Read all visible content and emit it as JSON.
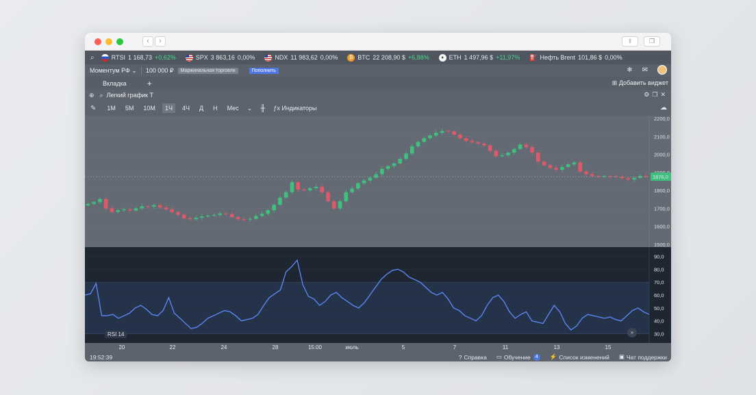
{
  "tickers": [
    {
      "icon": "flag-ru",
      "name": "RTSI",
      "value": "1 168,73",
      "change": "+0,62%",
      "dir": "pos"
    },
    {
      "icon": "flag-us",
      "name": "SPX",
      "value": "3 863,16",
      "change": "0,00%",
      "dir": "zero"
    },
    {
      "icon": "flag-us",
      "name": "NDX",
      "value": "11 983,62",
      "change": "0,00%",
      "dir": "zero"
    },
    {
      "icon": "coin-btc",
      "name": "BTC",
      "value": "22 208,90 $",
      "change": "+6,88%",
      "dir": "pos"
    },
    {
      "icon": "coin-eth",
      "name": "ETH",
      "value": "1 497,96 $",
      "change": "+11,97%",
      "dir": "pos"
    },
    {
      "icon": "oil-icon",
      "name": "Нефть Brent",
      "value": "101,86 $",
      "change": "0,00%",
      "dir": "zero"
    }
  ],
  "account": {
    "name": "Моментум РФ",
    "balance": "100 000 ₽",
    "margin_badge": "Маржинальная торговля",
    "deposit_button": "Пополнить"
  },
  "tabs": {
    "tab1": "Вкладка",
    "add": "+",
    "add_widget": "Добавить виджет"
  },
  "widget": {
    "title": "Легкий график T"
  },
  "toolbar": {
    "timeframes": [
      "1М",
      "5М",
      "10М",
      "1Ч",
      "4Ч",
      "Д",
      "Н",
      "Мес"
    ],
    "active_timeframe": "1Ч",
    "indicators": "Индикаторы"
  },
  "price_axis": [
    "2200,0",
    "2100,0",
    "2000,0",
    "1900,0",
    "1800,0",
    "1700,0",
    "1600,0",
    "1500,0"
  ],
  "last_price": "1876,0",
  "rsi_axis": [
    "90,0",
    "80,0",
    "70,0",
    "60,0",
    "50,0",
    "40,0",
    "30,0"
  ],
  "rsi_label": "RSI 14",
  "time_labels": [
    "20",
    "22",
    "24",
    "28",
    "15:00",
    "июль",
    "5",
    "7",
    "11",
    "13",
    "15"
  ],
  "status": {
    "clock": "19:52:39",
    "help": "Справка",
    "learning": "Обучение",
    "learning_count": "4",
    "changelog": "Список изменений",
    "support": "Чат поддержки"
  },
  "colors": {
    "up": "#3fc07e",
    "down": "#e0596a",
    "rsi_line": "#5b86f0",
    "accent": "#4f78e6"
  },
  "chart_data": [
    {
      "type": "candlestick",
      "title": "",
      "ylim": [
        1500,
        2200
      ],
      "close_series_approx": [
        1725,
        1735,
        1752,
        1700,
        1680,
        1690,
        1695,
        1688,
        1700,
        1712,
        1710,
        1718,
        1705,
        1695,
        1680,
        1665,
        1645,
        1640,
        1648,
        1655,
        1660,
        1664,
        1672,
        1668,
        1652,
        1640,
        1638,
        1642,
        1658,
        1670,
        1690,
        1720,
        1760,
        1790,
        1845,
        1805,
        1800,
        1812,
        1820,
        1790,
        1740,
        1700,
        1740,
        1790,
        1810,
        1840,
        1855,
        1870,
        1890,
        1920,
        1935,
        1950,
        1975,
        2005,
        2045,
        2070,
        2090,
        2105,
        2120,
        2130,
        2128,
        2110,
        2090,
        2075,
        2068,
        2060,
        2050,
        2020,
        1990,
        1995,
        2010,
        2030,
        2055,
        2040,
        2010,
        1960,
        1940,
        1925,
        1915,
        1930,
        1945,
        1955,
        1905,
        1890,
        1880,
        1878,
        1880,
        1878,
        1875,
        1868,
        1860,
        1870,
        1880,
        1876
      ]
    },
    {
      "type": "line",
      "title": "",
      "series": [
        {
          "name": "RSI 14",
          "values": [
            60,
            61,
            69,
            44,
            44,
            45,
            42,
            44,
            46,
            50,
            52,
            49,
            45,
            44,
            48,
            58,
            46,
            42,
            38,
            34,
            35,
            38,
            42,
            44,
            46,
            48,
            47,
            44,
            40,
            41,
            42,
            45,
            52,
            58,
            61,
            64,
            78,
            82,
            87,
            68,
            59,
            57,
            52,
            55,
            60,
            62,
            58,
            55,
            52,
            50,
            54,
            60,
            66,
            72,
            76,
            79,
            80,
            78,
            74,
            72,
            70,
            66,
            62,
            60,
            62,
            57,
            50,
            48,
            44,
            42,
            40,
            44,
            52,
            58,
            60,
            55,
            47,
            42,
            45,
            47,
            40,
            39,
            38,
            45,
            52,
            47,
            38,
            33,
            36,
            42,
            45,
            44,
            43,
            42,
            43,
            41,
            40,
            44,
            48,
            50,
            47,
            45
          ]
        }
      ],
      "ylim": [
        25,
        95
      ]
    }
  ]
}
